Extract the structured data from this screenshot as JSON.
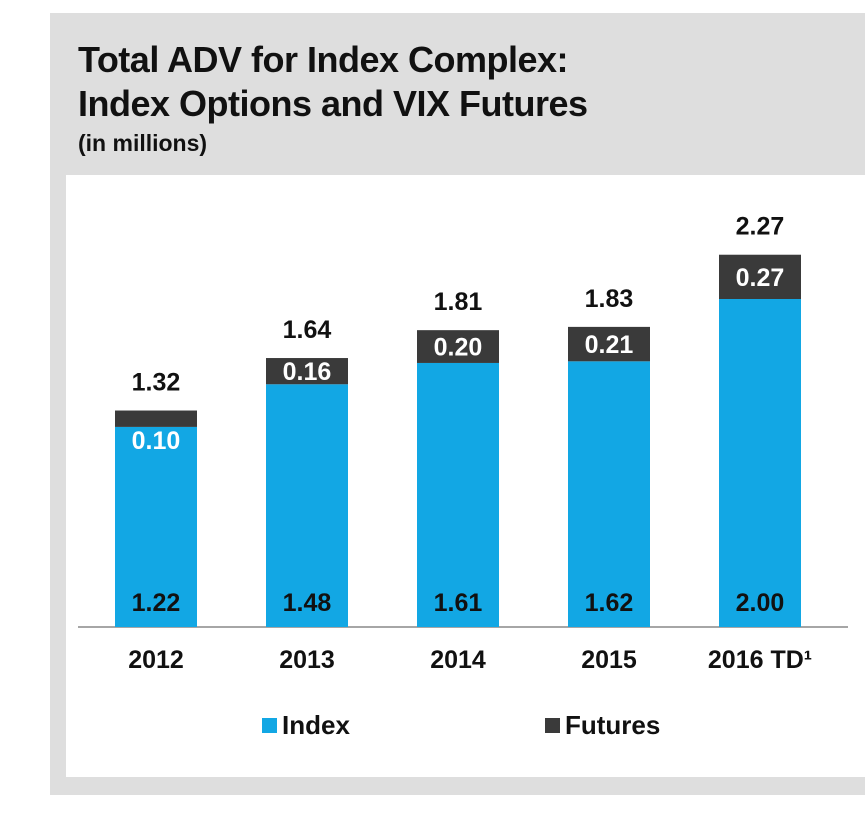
{
  "chart_data": {
    "type": "bar",
    "stacked": true,
    "title_line1": "Total ADV for Index Complex:",
    "title_line2": "Index Options and VIX Futures",
    "subtitle": "(in millions)",
    "categories": [
      "2012",
      "2013",
      "2014",
      "2015",
      "2016 TD¹"
    ],
    "series": [
      {
        "name": "Index",
        "values": [
          1.22,
          1.48,
          1.61,
          1.62,
          2.0
        ],
        "labels": [
          "1.22",
          "1.48",
          "1.61",
          "1.62",
          "2.00"
        ],
        "color": "#12a7e4"
      },
      {
        "name": "Futures",
        "values": [
          0.1,
          0.16,
          0.2,
          0.21,
          0.27
        ],
        "labels": [
          "0.10",
          "0.16",
          "0.20",
          "0.21",
          "0.27"
        ],
        "color": "#3a3a3a"
      }
    ],
    "totals": [
      "1.32",
      "1.64",
      "1.81",
      "1.83",
      "2.27"
    ],
    "ylim": [
      0,
      2.6
    ],
    "grid": false,
    "legend_position": "bottom"
  }
}
